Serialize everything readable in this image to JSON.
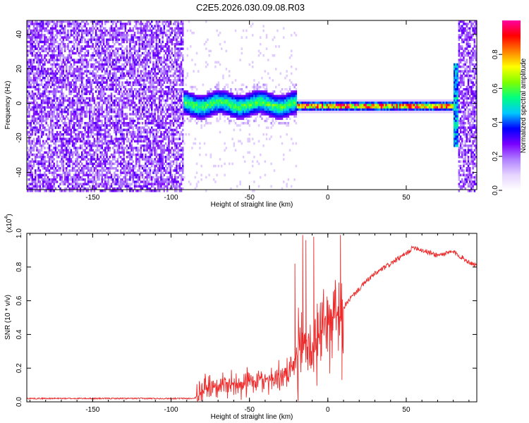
{
  "figure": {
    "title": "C2E5.2026.030.09.08.R03"
  },
  "chart_data": [
    {
      "type": "heatmap",
      "xlabel": "Height of straight line (km)",
      "ylabel": "Frequency (Hz)",
      "xlim": [
        -192,
        95
      ],
      "ylim": [
        -50,
        48
      ],
      "xticks": [
        -150,
        -100,
        -50,
        0,
        50
      ],
      "yticks": [
        -40,
        -20,
        0,
        20,
        40
      ],
      "colorbar": {
        "label": "Normalized spectral amplitude",
        "range": [
          0,
          1
        ],
        "ticks": [
          "0.0",
          "0.2",
          "0.4",
          "0.6",
          "0.8"
        ],
        "colors": [
          "#ffffff",
          "#e6d4ff",
          "#b080ff",
          "#7a00ff",
          "#0000ff",
          "#00c8ff",
          "#00ff80",
          "#80ff00",
          "#ffff00",
          "#ff8000",
          "#ff0000",
          "#ff00a0"
        ]
      },
      "regions": [
        {
          "x": [
            -192,
            -93
          ],
          "description": "broadband noise, amplitude 0.1-0.3"
        },
        {
          "x": [
            -93,
            -20
          ],
          "description": "diffuse signal near 0 Hz, amplitude up to 0.5"
        },
        {
          "x": [
            -20,
            80
          ],
          "description": "narrow line near -1 Hz, amplitude up to 1.0"
        },
        {
          "x": [
            83,
            95
          ],
          "description": "broadband noise, amplitude 0.1-0.3"
        }
      ]
    },
    {
      "type": "line",
      "xlabel": "Height of straight line (km)",
      "ylabel": "SNR (10 * v/v)",
      "scale_label": "(x10",
      "scale_exp": "4",
      "scale_close": ")",
      "xlim": [
        -192,
        95
      ],
      "ylim": [
        0,
        1.0
      ],
      "xticks": [
        -150,
        -100,
        -50,
        0,
        50
      ],
      "yticks": [
        "0.0",
        "0.2",
        "0.4",
        "0.6",
        "0.8",
        "1.0"
      ],
      "series": [
        {
          "color": "#ee2a2a",
          "x": [
            -192,
            -180,
            -160,
            -140,
            -120,
            -100,
            -90,
            -85,
            -82,
            -78,
            -70,
            -60,
            -50,
            -42,
            -35,
            -30,
            -25,
            -22,
            -20,
            -17,
            -15,
            -13,
            -10,
            -6,
            -3,
            0,
            5,
            8,
            10,
            15,
            20,
            25,
            30,
            40,
            50,
            55,
            60,
            70,
            80,
            85,
            90,
            95
          ],
          "y": [
            0.02,
            0.02,
            0.02,
            0.02,
            0.02,
            0.02,
            0.02,
            0.02,
            0.05,
            0.09,
            0.1,
            0.11,
            0.12,
            0.13,
            0.14,
            0.15,
            0.16,
            0.2,
            0.26,
            0.32,
            0.36,
            0.34,
            0.3,
            0.38,
            0.44,
            0.5,
            0.52,
            0.44,
            0.56,
            0.62,
            0.67,
            0.72,
            0.76,
            0.82,
            0.88,
            0.92,
            0.9,
            0.87,
            0.89,
            0.86,
            0.83,
            0.81
          ]
        }
      ]
    }
  ]
}
